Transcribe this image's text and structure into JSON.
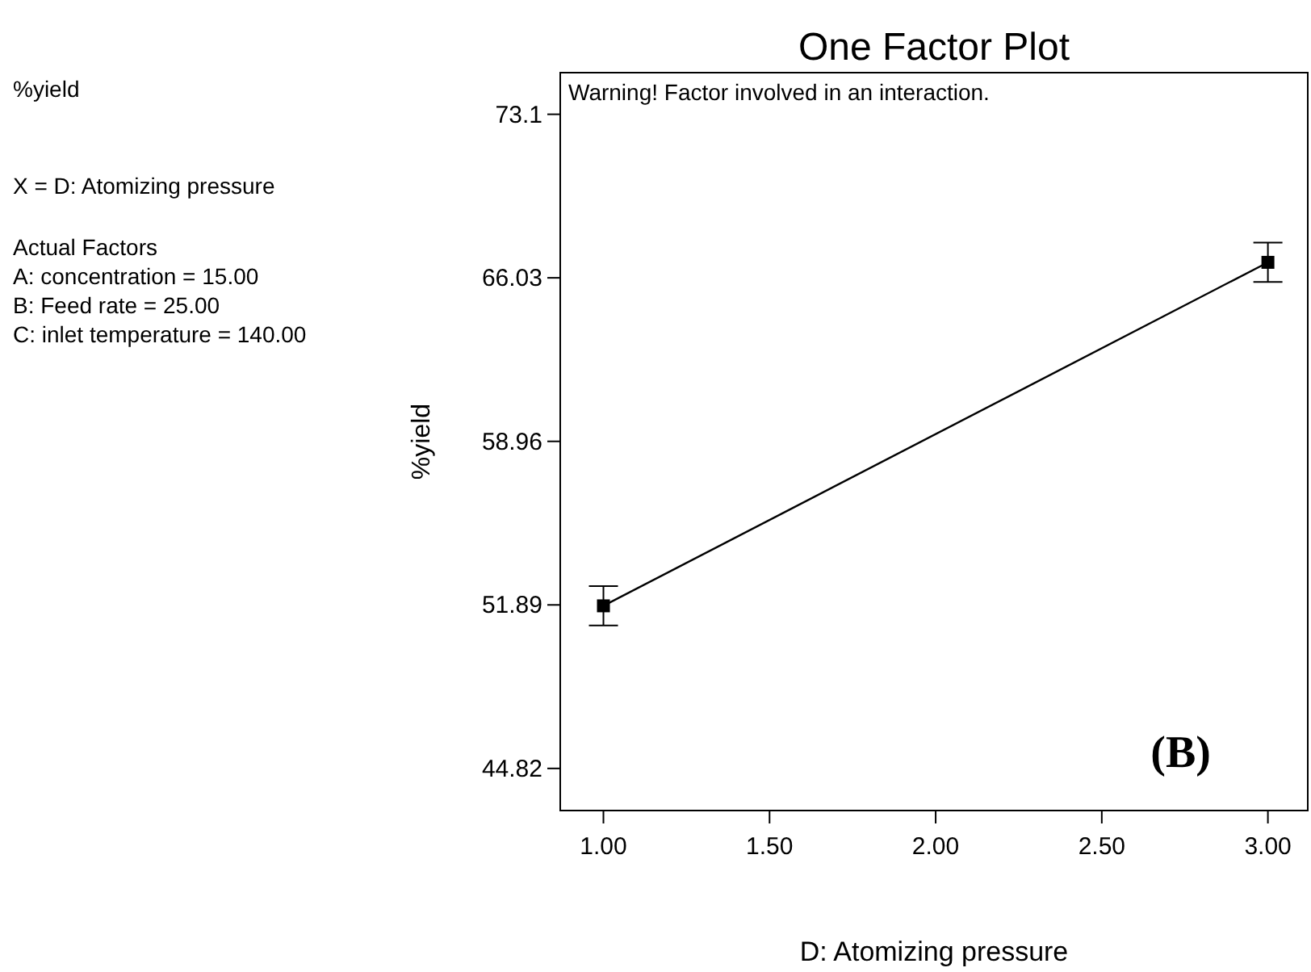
{
  "chart_data": {
    "type": "line",
    "title": "One Factor Plot",
    "xlabel": "D: Atomizing pressure",
    "ylabel": "%yield",
    "annotations": [
      "%yield",
      "X = D: Atomizing pressure",
      "Actual Factors",
      "A: concentration = 15.00",
      "B: Feed rate = 25.00",
      "C: inlet temperature = 140.00",
      "Warning! Factor involved in an interaction.",
      "(B)"
    ],
    "x": [
      1,
      3
    ],
    "series": [
      {
        "color": "#000000",
        "values": [
          51.85,
          66.7
        ],
        "errors": [
          0.85,
          0.85
        ]
      }
    ],
    "marker": "square",
    "line_style": "solid",
    "grid": false,
    "xlim": [
      0.87,
      3.12
    ],
    "ylim": [
      43.0,
      74.9
    ],
    "xticks": [
      {
        "value": 1,
        "label": "1.00"
      },
      {
        "value": 1.5,
        "label": "1.50"
      },
      {
        "value": 2,
        "label": "2.00"
      },
      {
        "value": 2.5,
        "label": "2.50"
      },
      {
        "value": 3,
        "label": "3.00"
      }
    ],
    "yticks": [
      44.82,
      51.89,
      58.96,
      66.03,
      73.1
    ]
  }
}
